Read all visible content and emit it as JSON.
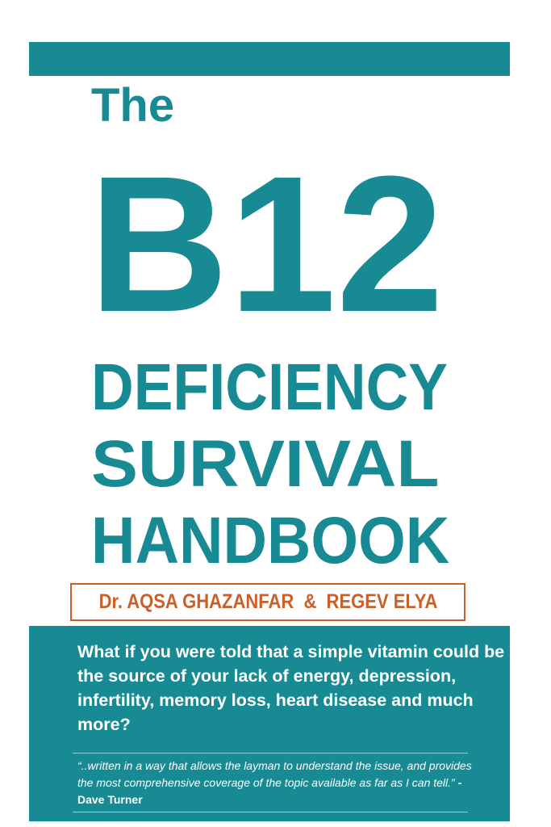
{
  "colors": {
    "accent": "#178a93",
    "author": "#c8602a"
  },
  "cover": {
    "title_the": "The",
    "title_b12": "B12",
    "title_line1": "DEFICIENCY",
    "title_line2": "SURVIVAL",
    "title_line3": "HANDBOOK",
    "authors": "Dr. AQSA GHAZANFAR  &  REGEV ELYA",
    "question": "What if you were told that a simple vitamin could be the source of your lack of energy, depression, infertility, memory loss, heart disease and much more?",
    "quote": "“..written in a way that allows the layman to understand the issue, and provides the most comprehensive coverage of the topic available as far as I can tell.”",
    "quote_author": " - Dave Turner"
  }
}
